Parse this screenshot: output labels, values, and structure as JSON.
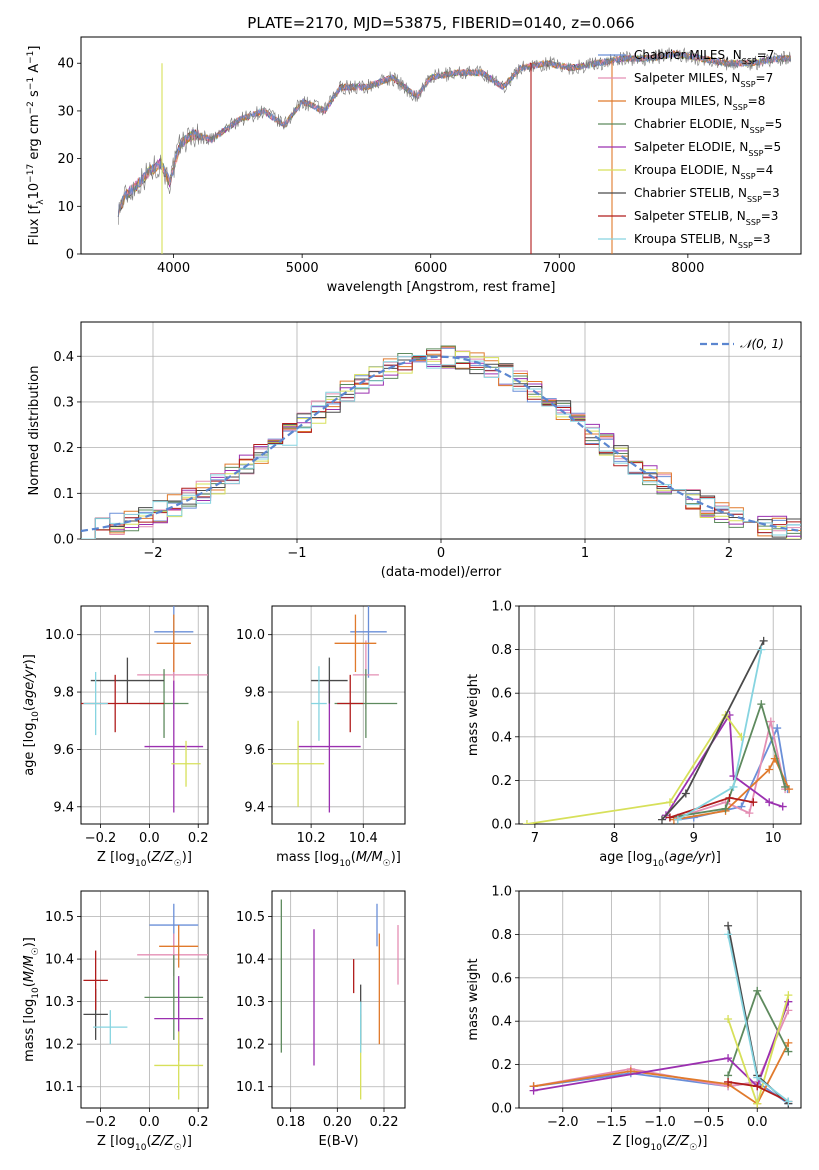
{
  "chart_data": [
    {
      "type": "line",
      "title": "PLATE=2170, MJD=53875, FIBERID=0140, z=0.066",
      "xlabel": "wavelength [Angstrom, rest frame]",
      "ylabel": "Flux [fλ10⁻¹⁷ erg cm⁻² s⁻¹ A⁻¹]",
      "xlim": [
        3280,
        8880
      ],
      "ylim": [
        0,
        45.5
      ],
      "xticks": [
        4000,
        5000,
        6000,
        7000,
        8000
      ],
      "yticks": [
        0,
        10,
        20,
        30,
        40
      ],
      "grid": false,
      "legend_position": "right",
      "observed_spectrum": {
        "x": [
          3570,
          3620,
          3700,
          3800,
          3900,
          3970,
          4050,
          4150,
          4300,
          4500,
          4700,
          4861,
          5000,
          5175,
          5300,
          5500,
          5700,
          5890,
          6000,
          6200,
          6400,
          6563,
          6700,
          6900,
          7100,
          7300,
          7500,
          7700,
          7900,
          8100,
          8300,
          8500,
          8700,
          8800
        ],
        "values": [
          9,
          12,
          14,
          17,
          19,
          15,
          23,
          25,
          24,
          28,
          30,
          27,
          32,
          30,
          35,
          35,
          37,
          33,
          37,
          38,
          38,
          35,
          39,
          40,
          39,
          40,
          41,
          41,
          42,
          41,
          40,
          40,
          41,
          41
        ]
      },
      "series": [
        {
          "name": "Chabrier MILES, N_SSP=7",
          "label_main": "Chabrier MILES, N",
          "label_sub": "SSP",
          "label_tail": "=7",
          "color": "#6a8fd8"
        },
        {
          "name": "Salpeter MILES, N_SSP=7",
          "label_main": "Salpeter MILES, N",
          "label_sub": "SSP",
          "label_tail": "=7",
          "color": "#e48fb4"
        },
        {
          "name": "Kroupa MILES, N_SSP=8",
          "label_main": "Kroupa MILES, N",
          "label_sub": "SSP",
          "label_tail": "=8",
          "color": "#e07a2c"
        },
        {
          "name": "Chabrier ELODIE, N_SSP=5",
          "label_main": "Chabrier ELODIE, N",
          "label_sub": "SSP",
          "label_tail": "=5",
          "color": "#5e8a5e"
        },
        {
          "name": "Salpeter ELODIE, N_SSP=5",
          "label_main": "Salpeter ELODIE, N",
          "label_sub": "SSP",
          "label_tail": "=5",
          "color": "#9b30b0"
        },
        {
          "name": "Kroupa ELODIE, N_SSP=4",
          "label_main": "Kroupa ELODIE, N",
          "label_sub": "SSP",
          "label_tail": "=4",
          "color": "#d7e05a"
        },
        {
          "name": "Chabrier STELIB, N_SSP=3",
          "label_main": "Chabrier STELIB, N",
          "label_sub": "SSP",
          "label_tail": "=3",
          "color": "#4a4a4a"
        },
        {
          "name": "Salpeter STELIB, N_SSP=3",
          "label_main": "Salpeter STELIB, N",
          "label_sub": "SSP",
          "label_tail": "=3",
          "color": "#b01c1c"
        },
        {
          "name": "Kroupa STELIB, N_SSP=3",
          "label_main": "Kroupa STELIB, N",
          "label_sub": "SSP",
          "label_tail": "=3",
          "color": "#86d4e0"
        }
      ]
    },
    {
      "type": "line",
      "xlabel": "(data-model)/error",
      "ylabel": "Normed distribution",
      "xlim": [
        -2.5,
        2.5
      ],
      "ylim": [
        0,
        0.475
      ],
      "xticks": [
        -2,
        -1,
        0,
        1,
        2
      ],
      "yticks": [
        0.0,
        0.1,
        0.2,
        0.3,
        0.4
      ],
      "grid": true,
      "legend_position": "top-right",
      "reference_curve": {
        "name": "𝒩(0, 1)",
        "mean": 0,
        "std": 1,
        "color": "#5b86d0"
      },
      "histogram_bins": {
        "start": -2.5,
        "width": 0.1,
        "count": 50
      }
    },
    {
      "type": "scatter",
      "xlabel": "Z [log10(Z/Z☉)]",
      "ylabel": "age [log10(age/yr)]",
      "xlim": [
        -0.28,
        0.24
      ],
      "ylim": [
        9.34,
        10.1
      ],
      "xticks": [
        -0.2,
        0.0,
        0.2
      ],
      "yticks": [
        9.4,
        9.6,
        9.8,
        10.0
      ],
      "grid": true,
      "points": [
        {
          "series": 0,
          "x": 0.1,
          "y": 10.01,
          "xerr": 0.08,
          "yerr": 0.16
        },
        {
          "series": 1,
          "x": 0.1,
          "y": 9.86,
          "xerr": 0.15,
          "yerr": 0.12
        },
        {
          "series": 2,
          "x": 0.1,
          "y": 9.97,
          "xerr": 0.07,
          "yerr": 0.1
        },
        {
          "series": 3,
          "x": 0.06,
          "y": 9.76,
          "xerr": 0.1,
          "yerr": 0.12
        },
        {
          "series": 4,
          "x": 0.1,
          "y": 9.61,
          "xerr": 0.12,
          "yerr": 0.23
        },
        {
          "series": 5,
          "x": 0.15,
          "y": 9.55,
          "xerr": 0.06,
          "yerr": 0.08
        },
        {
          "series": 6,
          "x": -0.09,
          "y": 9.84,
          "xerr": 0.15,
          "yerr": 0.08
        },
        {
          "series": 7,
          "x": -0.14,
          "y": 9.76,
          "xerr": 0.2,
          "yerr": 0.1
        },
        {
          "series": 8,
          "x": -0.22,
          "y": 9.76,
          "xerr": 0.05,
          "yerr": 0.11
        }
      ]
    },
    {
      "type": "scatter",
      "xlabel": "mass [log10(M/M☉)]",
      "ylabel": "",
      "xlim": [
        10.05,
        10.56
      ],
      "ylim": [
        9.34,
        10.1
      ],
      "xticks": [
        10.2,
        10.4
      ],
      "yticks": [
        9.4,
        9.6,
        9.8,
        10.0
      ],
      "grid": true,
      "points": [
        {
          "series": 0,
          "x": 10.42,
          "y": 10.01,
          "xerr": 0.07,
          "yerr": 0.16
        },
        {
          "series": 1,
          "x": 10.41,
          "y": 9.86,
          "xerr": 0.05,
          "yerr": 0.12
        },
        {
          "series": 2,
          "x": 10.37,
          "y": 9.97,
          "xerr": 0.08,
          "yerr": 0.1
        },
        {
          "series": 3,
          "x": 10.41,
          "y": 9.76,
          "xerr": 0.12,
          "yerr": 0.12
        },
        {
          "series": 4,
          "x": 10.27,
          "y": 9.61,
          "xerr": 0.12,
          "yerr": 0.23
        },
        {
          "series": 5,
          "x": 10.15,
          "y": 9.55,
          "xerr": 0.1,
          "yerr": 0.15
        },
        {
          "series": 6,
          "x": 10.27,
          "y": 9.84,
          "xerr": 0.07,
          "yerr": 0.08
        },
        {
          "series": 7,
          "x": 10.35,
          "y": 9.76,
          "xerr": 0.05,
          "yerr": 0.1
        },
        {
          "series": 8,
          "x": 10.23,
          "y": 9.76,
          "xerr": 0.03,
          "yerr": 0.13
        }
      ]
    },
    {
      "type": "line",
      "xlabel": "age [log10(age/yr)]",
      "ylabel": "mass weight",
      "xlim": [
        6.8,
        10.35
      ],
      "ylim": [
        0,
        1.0
      ],
      "xticks": [
        7,
        8,
        9,
        10
      ],
      "yticks": [
        0.0,
        0.2,
        0.4,
        0.6,
        0.8,
        1.0
      ],
      "grid": true,
      "series": [
        {
          "series": 0,
          "x": [
            8.8,
            9.0,
            9.6,
            10.05,
            10.18
          ],
          "y": [
            0.02,
            0.03,
            0.08,
            0.44,
            0.16
          ]
        },
        {
          "series": 1,
          "x": [
            8.8,
            9.4,
            9.7,
            9.97,
            10.15
          ],
          "y": [
            0.03,
            0.1,
            0.05,
            0.47,
            0.16
          ]
        },
        {
          "series": 2,
          "x": [
            8.75,
            9.4,
            9.95,
            10.02,
            10.2
          ],
          "y": [
            0.02,
            0.06,
            0.25,
            0.3,
            0.16
          ]
        },
        {
          "series": 3,
          "x": [
            8.7,
            9.4,
            9.85,
            10.15
          ],
          "y": [
            0.03,
            0.07,
            0.55,
            0.17
          ]
        },
        {
          "series": 4,
          "x": [
            8.65,
            9.45,
            9.5,
            9.95,
            10.12
          ],
          "y": [
            0.04,
            0.5,
            0.22,
            0.1,
            0.08
          ]
        },
        {
          "series": 5,
          "x": [
            6.9,
            8.7,
            9.4,
            9.6
          ],
          "y": [
            0.0,
            0.1,
            0.5,
            0.4
          ]
        },
        {
          "series": 6,
          "x": [
            8.6,
            8.9,
            9.88
          ],
          "y": [
            0.02,
            0.14,
            0.84
          ]
        },
        {
          "series": 7,
          "x": [
            8.7,
            9.45,
            9.75
          ],
          "y": [
            0.03,
            0.12,
            0.1
          ]
        },
        {
          "series": 8,
          "x": [
            8.8,
            9.5,
            9.85
          ],
          "y": [
            0.02,
            0.17,
            0.8
          ]
        }
      ]
    },
    {
      "type": "scatter",
      "xlabel": "Z [log10(Z/Z☉)]",
      "ylabel": "mass [log10(M/M☉)]",
      "xlim": [
        -0.28,
        0.24
      ],
      "ylim": [
        10.05,
        10.56
      ],
      "xticks": [
        -0.2,
        0.0,
        0.2
      ],
      "yticks": [
        10.1,
        10.2,
        10.3,
        10.4,
        10.5
      ],
      "grid": true,
      "points": [
        {
          "series": 0,
          "x": 0.1,
          "y": 10.48,
          "xerr": 0.1,
          "yerr": 0.05
        },
        {
          "series": 1,
          "x": 0.1,
          "y": 10.41,
          "xerr": 0.15,
          "yerr": 0.05
        },
        {
          "series": 2,
          "x": 0.12,
          "y": 10.43,
          "xerr": 0.08,
          "yerr": 0.05
        },
        {
          "series": 3,
          "x": 0.1,
          "y": 10.31,
          "xerr": 0.12,
          "yerr": 0.1
        },
        {
          "series": 4,
          "x": 0.12,
          "y": 10.26,
          "xerr": 0.1,
          "yerr": 0.1
        },
        {
          "series": 5,
          "x": 0.12,
          "y": 10.15,
          "xerr": 0.1,
          "yerr": 0.08
        },
        {
          "series": 6,
          "x": -0.22,
          "y": 10.27,
          "xerr": 0.05,
          "yerr": 0.06
        },
        {
          "series": 7,
          "x": -0.22,
          "y": 10.35,
          "xerr": 0.05,
          "yerr": 0.07
        },
        {
          "series": 8,
          "x": -0.16,
          "y": 10.24,
          "xerr": 0.07,
          "yerr": 0.04
        }
      ]
    },
    {
      "type": "scatter",
      "xlabel": "E(B-V)",
      "ylabel": "",
      "xlim": [
        0.172,
        0.229
      ],
      "ylim": [
        10.05,
        10.56
      ],
      "xticks": [
        0.18,
        0.2,
        0.22
      ],
      "yticks": [
        10.1,
        10.2,
        10.3,
        10.4,
        10.5
      ],
      "grid": true,
      "points": [
        {
          "series": 0,
          "x": 0.217,
          "y": 10.48,
          "xerr": 0.0,
          "yerr": 0.05
        },
        {
          "series": 1,
          "x": 0.226,
          "y": 10.41,
          "xerr": 0.0,
          "yerr": 0.07
        },
        {
          "series": 2,
          "x": 0.218,
          "y": 10.33,
          "xerr": 0.0,
          "yerr": 0.13
        },
        {
          "series": 3,
          "x": 0.176,
          "y": 10.36,
          "xerr": 0.0,
          "yerr": 0.18
        },
        {
          "series": 4,
          "x": 0.19,
          "y": 10.31,
          "xerr": 0.0,
          "yerr": 0.16
        },
        {
          "series": 5,
          "x": 0.21,
          "y": 10.17,
          "xerr": 0.0,
          "yerr": 0.1
        },
        {
          "series": 6,
          "x": 0.21,
          "y": 10.27,
          "xerr": 0.0,
          "yerr": 0.07
        },
        {
          "series": 7,
          "x": 0.207,
          "y": 10.36,
          "xerr": 0.0,
          "yerr": 0.04
        },
        {
          "series": 8,
          "x": 0.21,
          "y": 10.24,
          "xerr": 0.0,
          "yerr": 0.06
        }
      ]
    },
    {
      "type": "line",
      "xlabel": "Z [log10(Z/Z☉)]",
      "ylabel": "mass weight",
      "xlim": [
        -2.45,
        0.45
      ],
      "ylim": [
        0,
        1.0
      ],
      "xticks": [
        -2.0,
        -1.5,
        -1.0,
        -0.5,
        0.0
      ],
      "yticks": [
        0.0,
        0.2,
        0.4,
        0.6,
        0.8,
        1.0
      ],
      "grid": true,
      "series": [
        {
          "series": 0,
          "x": [
            -2.3,
            -1.3,
            -0.3,
            0.0,
            0.32
          ],
          "y": [
            0.1,
            0.16,
            0.1,
            0.12,
            0.02
          ]
        },
        {
          "series": 1,
          "x": [
            -2.3,
            -1.3,
            -0.3,
            0.0,
            0.32
          ],
          "y": [
            0.1,
            0.18,
            0.1,
            0.12,
            0.45
          ]
        },
        {
          "series": 2,
          "x": [
            -2.3,
            -1.3,
            -0.3,
            0.0,
            0.32
          ],
          "y": [
            0.1,
            0.17,
            0.11,
            0.02,
            0.3
          ]
        },
        {
          "series": 3,
          "x": [
            -0.3,
            0.0,
            0.32
          ],
          "y": [
            0.15,
            0.54,
            0.26
          ]
        },
        {
          "series": 4,
          "x": [
            -2.3,
            -0.3,
            0.0,
            0.32
          ],
          "y": [
            0.08,
            0.23,
            0.1,
            0.49
          ]
        },
        {
          "series": 5,
          "x": [
            -0.3,
            0.0,
            0.32
          ],
          "y": [
            0.41,
            0.02,
            0.52
          ]
        },
        {
          "series": 6,
          "x": [
            -0.3,
            0.0,
            0.32
          ],
          "y": [
            0.84,
            0.15,
            0.02
          ]
        },
        {
          "series": 7,
          "x": [
            -0.3,
            0.0,
            0.32
          ],
          "y": [
            0.12,
            0.1,
            0.03
          ]
        },
        {
          "series": 8,
          "x": [
            -0.3,
            0.0,
            0.32
          ],
          "y": [
            0.8,
            0.14,
            0.03
          ]
        }
      ]
    }
  ]
}
